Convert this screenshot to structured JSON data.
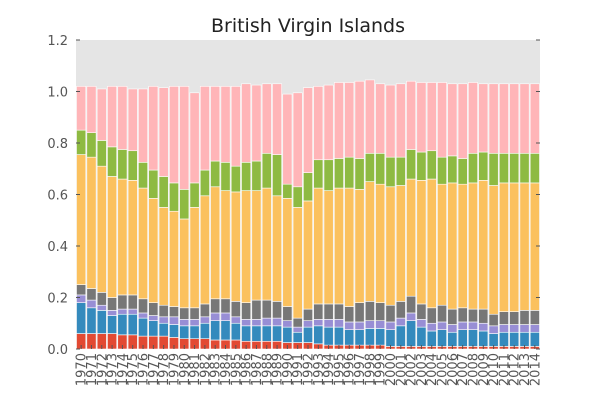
{
  "chart_data": {
    "type": "bar",
    "stacked": true,
    "title": "British Virgin Islands",
    "xlabel": "",
    "ylabel": "",
    "ylim": [
      0,
      1.2
    ],
    "yticks": [
      "0.0",
      "0.2",
      "0.4",
      "0.6",
      "0.8",
      "1.0",
      "1.2"
    ],
    "ytick_values": [
      0,
      0.2,
      0.4,
      0.6,
      0.8,
      1.0,
      1.2
    ],
    "grid": false,
    "legend": "none",
    "background": "#e5e5e5",
    "categories": [
      "1970",
      "1971",
      "1972",
      "1973",
      "1974",
      "1975",
      "1976",
      "1977",
      "1978",
      "1979",
      "1980",
      "1981",
      "1982",
      "1983",
      "1984",
      "1985",
      "1986",
      "1987",
      "1988",
      "1989",
      "1990",
      "1991",
      "1992",
      "1993",
      "1994",
      "1995",
      "1996",
      "1997",
      "1998",
      "1999",
      "2000",
      "2001",
      "2002",
      "2003",
      "2004",
      "2005",
      "2006",
      "2007",
      "2008",
      "2009",
      "2010",
      "2011",
      "2012",
      "2013",
      "2014"
    ],
    "series": [
      {
        "color": "#e24a33",
        "values": [
          0.06,
          0.06,
          0.06,
          0.06,
          0.055,
          0.055,
          0.05,
          0.05,
          0.05,
          0.045,
          0.04,
          0.04,
          0.04,
          0.035,
          0.035,
          0.035,
          0.03,
          0.03,
          0.03,
          0.03,
          0.025,
          0.025,
          0.025,
          0.02,
          0.015,
          0.015,
          0.015,
          0.015,
          0.015,
          0.015,
          0.01,
          0.01,
          0.01,
          0.01,
          0.01,
          0.01,
          0.01,
          0.01,
          0.01,
          0.01,
          0.01,
          0.01,
          0.01,
          0.01,
          0.01
        ]
      },
      {
        "color": "#348abd",
        "values": [
          0.12,
          0.1,
          0.09,
          0.07,
          0.08,
          0.08,
          0.07,
          0.06,
          0.05,
          0.05,
          0.05,
          0.05,
          0.06,
          0.075,
          0.075,
          0.065,
          0.06,
          0.06,
          0.06,
          0.06,
          0.06,
          0.04,
          0.06,
          0.07,
          0.07,
          0.07,
          0.06,
          0.06,
          0.065,
          0.065,
          0.065,
          0.08,
          0.1,
          0.075,
          0.06,
          0.065,
          0.055,
          0.065,
          0.065,
          0.06,
          0.05,
          0.055,
          0.055,
          0.055,
          0.055
        ]
      },
      {
        "color": "#988ed5",
        "values": [
          0.03,
          0.03,
          0.02,
          0.02,
          0.02,
          0.02,
          0.02,
          0.02,
          0.025,
          0.03,
          0.025,
          0.025,
          0.025,
          0.03,
          0.03,
          0.025,
          0.025,
          0.025,
          0.03,
          0.03,
          0.025,
          0.02,
          0.025,
          0.025,
          0.03,
          0.03,
          0.03,
          0.03,
          0.03,
          0.03,
          0.03,
          0.03,
          0.03,
          0.03,
          0.03,
          0.03,
          0.03,
          0.03,
          0.03,
          0.03,
          0.03,
          0.03,
          0.03,
          0.03,
          0.03
        ]
      },
      {
        "color": "#777777",
        "values": [
          0.04,
          0.045,
          0.05,
          0.05,
          0.055,
          0.055,
          0.055,
          0.05,
          0.045,
          0.04,
          0.045,
          0.045,
          0.05,
          0.055,
          0.055,
          0.06,
          0.065,
          0.075,
          0.07,
          0.065,
          0.055,
          0.035,
          0.045,
          0.06,
          0.06,
          0.06,
          0.06,
          0.075,
          0.075,
          0.07,
          0.065,
          0.065,
          0.065,
          0.06,
          0.06,
          0.065,
          0.06,
          0.055,
          0.05,
          0.055,
          0.045,
          0.05,
          0.05,
          0.055,
          0.055
        ]
      },
      {
        "color": "#fbc15e",
        "values": [
          0.505,
          0.51,
          0.49,
          0.47,
          0.45,
          0.445,
          0.43,
          0.405,
          0.38,
          0.37,
          0.345,
          0.39,
          0.42,
          0.435,
          0.42,
          0.425,
          0.435,
          0.425,
          0.435,
          0.41,
          0.42,
          0.43,
          0.42,
          0.45,
          0.44,
          0.45,
          0.46,
          0.44,
          0.465,
          0.46,
          0.46,
          0.45,
          0.455,
          0.48,
          0.5,
          0.47,
          0.49,
          0.48,
          0.49,
          0.5,
          0.5,
          0.5,
          0.5,
          0.495,
          0.495
        ]
      },
      {
        "color": "#8eba42",
        "values": [
          0.095,
          0.095,
          0.1,
          0.115,
          0.115,
          0.115,
          0.1,
          0.11,
          0.12,
          0.11,
          0.115,
          0.095,
          0.1,
          0.1,
          0.11,
          0.1,
          0.11,
          0.115,
          0.135,
          0.16,
          0.055,
          0.08,
          0.11,
          0.11,
          0.12,
          0.115,
          0.12,
          0.12,
          0.11,
          0.12,
          0.115,
          0.11,
          0.115,
          0.11,
          0.11,
          0.105,
          0.105,
          0.1,
          0.115,
          0.11,
          0.125,
          0.115,
          0.115,
          0.115,
          0.115
        ]
      },
      {
        "color": "#ffb5b8",
        "values": [
          0.17,
          0.18,
          0.2,
          0.235,
          0.245,
          0.24,
          0.285,
          0.325,
          0.345,
          0.375,
          0.4,
          0.35,
          0.325,
          0.29,
          0.295,
          0.31,
          0.305,
          0.295,
          0.27,
          0.275,
          0.35,
          0.365,
          0.33,
          0.285,
          0.29,
          0.295,
          0.29,
          0.3,
          0.285,
          0.27,
          0.28,
          0.285,
          0.265,
          0.27,
          0.265,
          0.29,
          0.28,
          0.29,
          0.275,
          0.265,
          0.27,
          0.27,
          0.27,
          0.27,
          0.27
        ]
      }
    ]
  }
}
